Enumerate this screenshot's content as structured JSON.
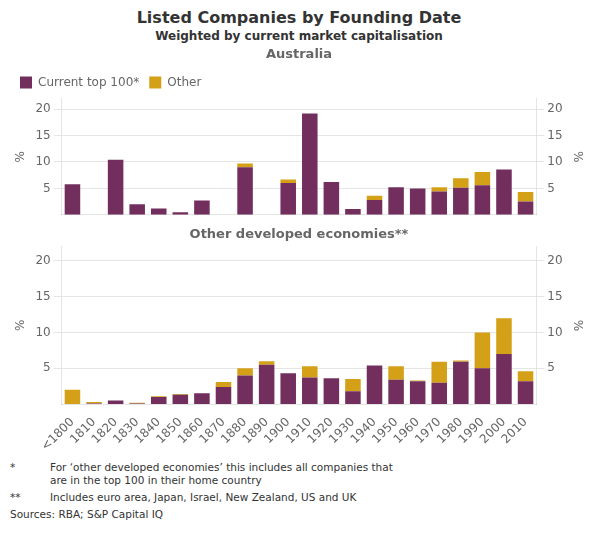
{
  "title": "Listed Companies by Founding Date",
  "subtitle": "Weighted by current market capitalisation",
  "annotations": [
    {
      "label": "*",
      "text": "For ‘other developed economies’ this includes all companies that\nare in the top 100 in their home country"
    },
    {
      "label": "**",
      "text": "Includes euro area, Japan, Israel, New Zealand, US and UK"
    },
    {
      "text": "Sources:  RBA; S&P Capital IQ"
    }
  ],
  "chart_data": [
    {
      "type": "bar",
      "title": "Australia",
      "stacked": true,
      "grid": true,
      "legend": "upper left",
      "tick_labels": "y",
      "categories": [
        "<1800",
        "1810",
        "1820",
        "1830",
        "1840",
        "1850",
        "1860",
        "1870",
        "1880",
        "1890",
        "1900",
        "1910",
        "1920",
        "1930",
        "1940",
        "1950",
        "1960",
        "1970",
        "1980",
        "1990",
        "2000",
        "2010"
      ],
      "series": [
        {
          "name": "Current top 100*",
          "color": "#722F5E",
          "values": [
            5.8,
            0.0,
            10.4,
            2.0,
            1.2,
            0.5,
            2.7,
            0.0,
            9.0,
            0.0,
            6.0,
            19.2,
            6.2,
            1.1,
            2.8,
            5.2,
            5.0,
            4.4,
            5.1,
            5.6,
            8.6,
            2.5
          ]
        },
        {
          "name": "Other",
          "color": "#D4A017",
          "values": [
            0.0,
            0.0,
            0.0,
            0.0,
            0.0,
            0.0,
            0.0,
            0.0,
            0.7,
            0.0,
            0.7,
            0.0,
            0.0,
            0.0,
            0.8,
            0.0,
            0.0,
            0.8,
            1.8,
            2.5,
            0.0,
            1.8
          ]
        }
      ],
      "y_label": "%",
      "ylim": [
        0,
        22
      ],
      "yticks": [
        5,
        10,
        15,
        20
      ],
      "y2_label": "%",
      "y2lim": [
        0,
        22
      ],
      "y2ticks": [
        5,
        10,
        15,
        20
      ]
    },
    {
      "type": "bar",
      "title": "Other developed economies**",
      "stacked": true,
      "grid": true,
      "legend": false,
      "categories": [
        "<1800",
        "1810",
        "1820",
        "1830",
        "1840",
        "1850",
        "1860",
        "1870",
        "1880",
        "1890",
        "1900",
        "1910",
        "1920",
        "1930",
        "1940",
        "1950",
        "1960",
        "1970",
        "1980",
        "1990",
        "2000",
        "2010"
      ],
      "series": [
        {
          "name": "Current top 100*",
          "color": "#722F5E",
          "values": [
            0.0,
            0.1,
            0.5,
            0.1,
            1.0,
            1.3,
            1.5,
            2.4,
            4.0,
            5.5,
            4.3,
            3.7,
            3.6,
            1.8,
            5.4,
            3.4,
            3.2,
            3.0,
            5.9,
            5.0,
            7.0,
            3.2
          ]
        },
        {
          "name": "Other",
          "color": "#D4A017",
          "values": [
            2.0,
            0.2,
            0.0,
            0.1,
            0.1,
            0.1,
            0.0,
            0.7,
            1.0,
            0.5,
            0.0,
            1.6,
            0.0,
            1.7,
            0.0,
            1.9,
            0.1,
            2.9,
            0.2,
            5.0,
            5.0,
            1.4
          ]
        }
      ],
      "y_label": "%",
      "ylim": [
        0,
        22
      ],
      "yticks": [
        5,
        10,
        15,
        20
      ],
      "y2_label": "%",
      "y2lim": [
        0,
        22
      ],
      "y2ticks": [
        5,
        10,
        15,
        20
      ]
    }
  ]
}
